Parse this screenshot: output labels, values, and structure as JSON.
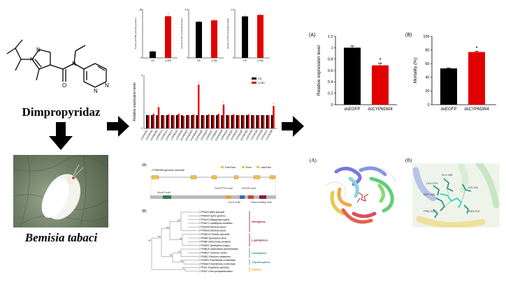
{
  "left": {
    "compound_name": "Dimpropyridaz",
    "insect_name": "Bemisia tabaci",
    "structure_atoms": [
      "N",
      "N",
      "O",
      "N",
      "N",
      "N"
    ]
  },
  "middle": {
    "enzyme_panels": [
      {
        "ylabel": "Activity of P450 (pmol/mg protein)",
        "ymax": "15",
        "categories": [
          "CK",
          "LC50"
        ],
        "values": [
          2.0,
          12.8
        ],
        "sig": "*"
      },
      {
        "ylabel": "Activity of EST (μmol/mg protein)",
        "ymax": "1.0",
        "categories": [
          "CK",
          "LC50"
        ],
        "values": [
          0.74,
          0.77
        ],
        "sig": ""
      },
      {
        "ylabel": "Activity of GST (μmol/mg protein)",
        "ymax": "1.0",
        "categories": [
          "CK",
          "LC50"
        ],
        "values": [
          0.85,
          0.88
        ],
        "sig": ""
      }
    ],
    "expression_chart": {
      "ylabel": "Relative expression level",
      "ymax": "4",
      "legend": [
        "CK",
        "LC50"
      ],
      "genes": [
        "CYP4C91",
        "CYP4C92",
        "CYP6CM1",
        "CYP6CX1",
        "CYP6CX3",
        "CYP6CX4",
        "CYP6DJ1",
        "CYP6DJ2",
        "CYP6DW2",
        "CYP6DW3",
        "CYP6DW4",
        "CYP6DW5",
        "CYP6DZ4",
        "CYP6DZ7",
        "CYP6EN1",
        "CYP6DW6",
        "CYP6DZ2",
        "CYP6DZ3",
        "CYP6DZ5",
        "CYP6DZ8",
        "CYP6CM2",
        "CYP4C94",
        "CYP4C95",
        "CYP4C96",
        "CYP4C97",
        "CYP4C98"
      ],
      "ck": [
        1,
        1,
        1,
        1,
        1,
        1,
        1,
        1,
        1,
        1,
        1,
        1,
        1,
        1,
        1,
        1,
        1,
        1,
        1,
        1,
        1,
        1,
        1,
        1,
        1,
        1
      ],
      "treated": [
        1.0,
        1.1,
        1.6,
        1.0,
        1.05,
        1.0,
        1.1,
        0.95,
        1.0,
        1.05,
        3.3,
        1.0,
        1.05,
        1.0,
        1.1,
        1.8,
        1.0,
        1.05,
        1.0,
        1.0,
        1.05,
        1.0,
        1.0,
        1.0,
        1.0,
        1.7
      ]
    },
    "gene_structure": {
      "panel_label": "(A)",
      "title": "CYP6DW4 genomic structure",
      "legend": [
        "First Exon",
        "Exon",
        "Last Exon"
      ],
      "motifs": [
        "WxxxR motif",
        "GxE/DTT/S motif",
        "ExLR motif",
        "PxxFxP motif",
        "Heme-binding motif"
      ]
    },
    "tree": {
      "panel_label": "(B)",
      "taxa": [
        "CYP6a14 Aphis gossypii",
        "CYP6DW1 Aphis glycines",
        "CYP6AX1 Nilaparvata lugens",
        "CYP6AY1 Laodelphax striatellus",
        "CYP6DW4 Bemisia tabaci",
        "CYP6DW3 Bemisia tabaci",
        "CYP6AE14 Plutella xylostella",
        "CYP6AB Spodoptera litura",
        "CYP6B6 Helicoverpa armigera",
        "CYP6AE1 Spodoptera exigua",
        "CYP6BQ9 Leptinotarsa decemlineata",
        "CYP6BQ7 Tenebrio molitor",
        "CYP6BQ Tribolium castaneum",
        "CYP6EB1 Frankliniella occidentalis",
        "CYP6EB2 Frankliniella occidentalis",
        "CYP6Z1 Anopheles gambiae",
        "CYP6Z2 Culex quinquefasciatus"
      ],
      "bootstrap": [
        "100",
        "99",
        "81",
        "100",
        "97",
        "100",
        "90",
        "100",
        "100"
      ],
      "orders": [
        {
          "name": "Hemiptera",
          "color": "#8b1c2c"
        },
        {
          "name": "Lepidoptera",
          "color": "#8b1c2c"
        },
        {
          "name": "Coleoptera",
          "color": "#1f8a5a"
        },
        {
          "name": "Thysanoptera",
          "color": "#2a8fb0"
        },
        {
          "name": "Diptera",
          "color": "#e0a020"
        }
      ]
    }
  },
  "right": {
    "rnai_expression": {
      "panel_label": "(A)",
      "ylabel": "Relative expression level",
      "ymax": "1.2",
      "yticks": [
        "0",
        "0.2",
        "0.4",
        "0.6",
        "0.8",
        "1",
        "1.2"
      ],
      "categories": [
        "dsEGFP",
        "dsCYP6DW4"
      ],
      "values": [
        1.0,
        0.69
      ],
      "errors": [
        0.03,
        0.04
      ],
      "colors": [
        "#000000",
        "#e00000"
      ],
      "sig": "*"
    },
    "mortality": {
      "panel_label": "(B)",
      "ylabel": "Mortality (%)",
      "ymax": "100",
      "yticks": [
        "0",
        "20",
        "40",
        "60",
        "80",
        "100"
      ],
      "categories": [
        "dsEGFP",
        "dsCYP6DW4"
      ],
      "values": [
        53,
        77
      ],
      "errors": [
        0.8,
        1.2
      ],
      "colors": [
        "#000000",
        "#e00000"
      ],
      "sig": "*"
    },
    "docking": {
      "panel_a_label": "(A)",
      "panel_b_label": "(B)",
      "residues": [
        "GLY-186",
        "LEU-378",
        "ASP-180",
        "ILE-118",
        "PHE-216",
        "ASN-212"
      ]
    }
  },
  "colors": {
    "control": "#000000",
    "treatment": "#e00000",
    "arrow": "#000000"
  }
}
